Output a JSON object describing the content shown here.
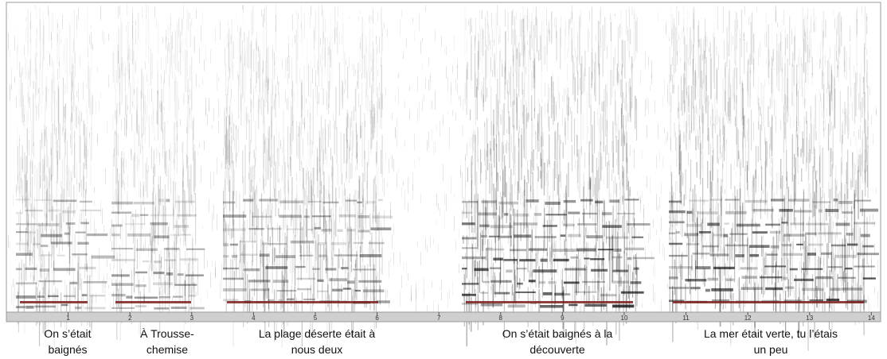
{
  "time_axis": {
    "range": [
      0,
      14.15
    ],
    "ticks": [
      1,
      2,
      3,
      4,
      5,
      6,
      7,
      8,
      9,
      10,
      11,
      12,
      13,
      14
    ]
  },
  "captions": [
    {
      "lines": [
        "On s’était",
        "baignés"
      ]
    },
    {
      "lines": [
        "À Trousse-",
        "chemise"
      ]
    },
    {
      "lines": [
        "La plage déserte était à",
        "nous deux"
      ]
    },
    {
      "lines": [
        "On s’était baignés à la",
        "découverte"
      ]
    },
    {
      "lines": [
        "La mer était verte, tu l’étais",
        "un peu"
      ]
    }
  ]
}
